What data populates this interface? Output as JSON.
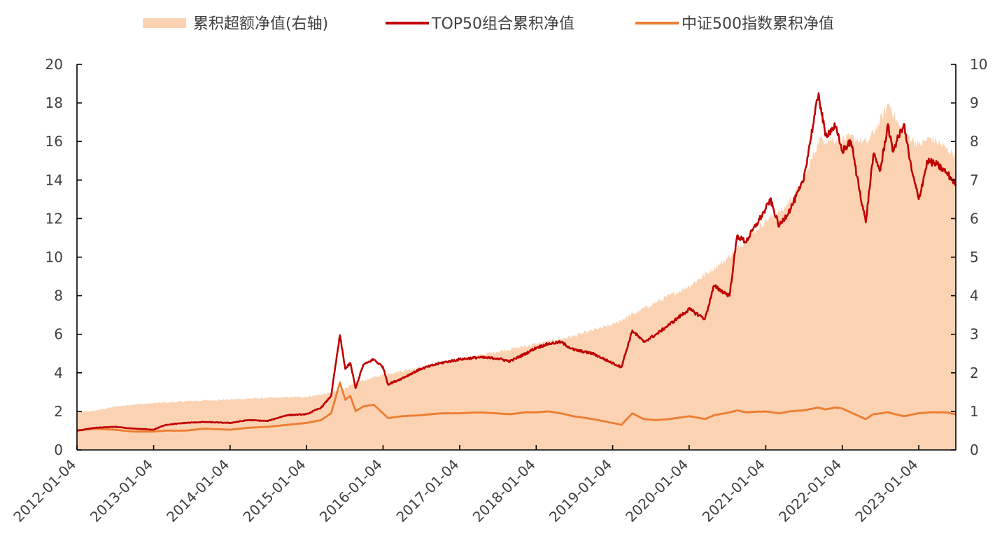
{
  "chart_data": {
    "type": "line",
    "title": "",
    "xlabel": "",
    "ylabel": "",
    "ylim": [
      0,
      20
    ],
    "y2lim": [
      0,
      10
    ],
    "yticks": [
      0,
      2,
      4,
      6,
      8,
      10,
      12,
      14,
      16,
      18,
      20
    ],
    "y2ticks": [
      0,
      1,
      2,
      3,
      4,
      5,
      6,
      7,
      8,
      9,
      10
    ],
    "xlim": [
      "2012-01-04",
      "2023-06-30"
    ],
    "xticks": [
      "2012-01-04",
      "2013-01-04",
      "2014-01-04",
      "2015-01-04",
      "2016-01-04",
      "2017-01-04",
      "2018-01-04",
      "2019-01-04",
      "2020-01-04",
      "2021-01-04",
      "2022-01-04",
      "2023-01-04"
    ],
    "legend_position": "top-center",
    "grid": false,
    "series": [
      {
        "name": "累积超额净值(右轴)",
        "type": "area",
        "axis": "right",
        "color": "#FBD3B3",
        "x": [
          "2012-01-04",
          "2012-04-01",
          "2012-07-01",
          "2012-10-01",
          "2013-01-04",
          "2013-07-01",
          "2014-01-04",
          "2014-07-01",
          "2015-01-04",
          "2015-04-01",
          "2015-06-15",
          "2015-09-01",
          "2016-01-04",
          "2016-07-01",
          "2017-01-04",
          "2017-07-01",
          "2018-01-04",
          "2018-07-01",
          "2019-01-04",
          "2019-07-01",
          "2020-01-04",
          "2020-07-01",
          "2021-01-04",
          "2021-04-01",
          "2021-07-01",
          "2021-09-15",
          "2022-01-04",
          "2022-03-01",
          "2022-05-01",
          "2022-07-01",
          "2022-08-15",
          "2022-10-01",
          "2023-01-04",
          "2023-03-01",
          "2023-06-30"
        ],
        "values": [
          0.97,
          1.02,
          1.12,
          1.18,
          1.21,
          1.27,
          1.31,
          1.35,
          1.38,
          1.45,
          1.55,
          1.75,
          1.95,
          2.15,
          2.35,
          2.55,
          2.75,
          2.95,
          3.25,
          3.75,
          4.25,
          4.95,
          5.95,
          6.25,
          6.95,
          8.05,
          8.05,
          8.1,
          7.95,
          8.5,
          9.0,
          8.4,
          7.9,
          8.1,
          7.65
        ]
      },
      {
        "name": "TOP50组合累积净值",
        "type": "line",
        "axis": "left",
        "color": "#C00000",
        "x": [
          "2012-01-04",
          "2012-04-01",
          "2012-07-01",
          "2012-10-01",
          "2013-01-04",
          "2013-03-01",
          "2013-06-01",
          "2013-09-01",
          "2014-01-04",
          "2014-04-01",
          "2014-07-01",
          "2014-10-01",
          "2015-01-04",
          "2015-03-15",
          "2015-05-01",
          "2015-06-12",
          "2015-07-08",
          "2015-08-01",
          "2015-08-26",
          "2015-10-01",
          "2015-11-20",
          "2016-01-04",
          "2016-01-28",
          "2016-04-01",
          "2016-07-01",
          "2016-10-01",
          "2017-01-04",
          "2017-04-01",
          "2017-07-01",
          "2017-09-01",
          "2017-11-15",
          "2018-01-04",
          "2018-03-01",
          "2018-05-01",
          "2018-07-01",
          "2018-10-01",
          "2019-01-04",
          "2019-02-15",
          "2019-04-08",
          "2019-06-01",
          "2019-08-01",
          "2019-10-01",
          "2020-01-04",
          "2020-03-20",
          "2020-05-01",
          "2020-07-15",
          "2020-08-20",
          "2020-10-01",
          "2021-01-04",
          "2021-01-25",
          "2021-03-09",
          "2021-05-01",
          "2021-07-01",
          "2021-09-13",
          "2021-10-15",
          "2021-12-01",
          "2022-01-04",
          "2022-02-15",
          "2022-03-15",
          "2022-04-26",
          "2022-06-01",
          "2022-07-05",
          "2022-08-10",
          "2022-09-01",
          "2022-10-25",
          "2022-12-01",
          "2023-01-04",
          "2023-02-15",
          "2023-04-01",
          "2023-05-15",
          "2023-06-30"
        ],
        "values": [
          1.0,
          1.15,
          1.2,
          1.1,
          1.05,
          1.3,
          1.4,
          1.45,
          1.4,
          1.55,
          1.5,
          1.8,
          1.85,
          2.2,
          2.8,
          5.95,
          4.2,
          4.5,
          3.2,
          4.4,
          4.7,
          4.3,
          3.4,
          3.7,
          4.2,
          4.5,
          4.7,
          4.8,
          4.75,
          4.6,
          5.0,
          5.3,
          5.5,
          5.6,
          5.2,
          5.0,
          4.5,
          4.3,
          6.2,
          5.6,
          6.0,
          6.5,
          7.3,
          6.8,
          8.5,
          8.0,
          11.1,
          10.8,
          12.5,
          13.0,
          11.6,
          12.5,
          13.9,
          18.5,
          16.3,
          16.8,
          15.5,
          16.0,
          14.2,
          11.8,
          15.3,
          14.5,
          16.9,
          15.5,
          16.9,
          14.5,
          13.0,
          15.0,
          14.8,
          14.4,
          13.8
        ]
      },
      {
        "name": "中证500指数累积净值",
        "type": "line",
        "axis": "left",
        "color": "#ED7D31",
        "x": [
          "2012-01-04",
          "2012-04-01",
          "2012-07-01",
          "2012-10-01",
          "2013-01-04",
          "2013-03-01",
          "2013-06-01",
          "2013-09-01",
          "2014-01-04",
          "2014-04-01",
          "2014-07-01",
          "2014-10-01",
          "2015-01-04",
          "2015-03-15",
          "2015-05-01",
          "2015-06-12",
          "2015-07-08",
          "2015-08-01",
          "2015-08-26",
          "2015-10-01",
          "2015-11-20",
          "2016-01-04",
          "2016-01-28",
          "2016-04-01",
          "2016-07-01",
          "2016-10-01",
          "2017-01-04",
          "2017-04-01",
          "2017-07-01",
          "2017-09-01",
          "2017-11-15",
          "2018-01-04",
          "2018-03-01",
          "2018-05-01",
          "2018-07-01",
          "2018-10-01",
          "2019-01-04",
          "2019-02-15",
          "2019-04-08",
          "2019-06-01",
          "2019-08-01",
          "2019-10-01",
          "2020-01-04",
          "2020-03-20",
          "2020-05-01",
          "2020-07-15",
          "2020-08-20",
          "2020-10-01",
          "2021-01-04",
          "2021-03-09",
          "2021-05-01",
          "2021-07-01",
          "2021-09-13",
          "2021-10-15",
          "2021-12-01",
          "2022-01-04",
          "2022-03-15",
          "2022-04-26",
          "2022-06-01",
          "2022-08-10",
          "2022-10-25",
          "2023-01-04",
          "2023-03-01",
          "2023-05-15",
          "2023-06-30"
        ],
        "values": [
          1.0,
          1.1,
          1.05,
          0.95,
          0.95,
          1.0,
          1.0,
          1.1,
          1.05,
          1.15,
          1.2,
          1.3,
          1.4,
          1.55,
          1.9,
          3.5,
          2.6,
          2.8,
          2.0,
          2.25,
          2.35,
          1.9,
          1.65,
          1.75,
          1.8,
          1.9,
          1.9,
          1.95,
          1.9,
          1.85,
          1.95,
          1.95,
          2.0,
          1.9,
          1.75,
          1.6,
          1.4,
          1.3,
          1.9,
          1.6,
          1.55,
          1.6,
          1.75,
          1.6,
          1.8,
          1.95,
          2.05,
          1.95,
          2.0,
          1.9,
          2.0,
          2.05,
          2.2,
          2.1,
          2.2,
          2.15,
          1.8,
          1.6,
          1.85,
          1.95,
          1.75,
          1.9,
          1.95,
          1.95,
          1.85
        ]
      }
    ]
  }
}
